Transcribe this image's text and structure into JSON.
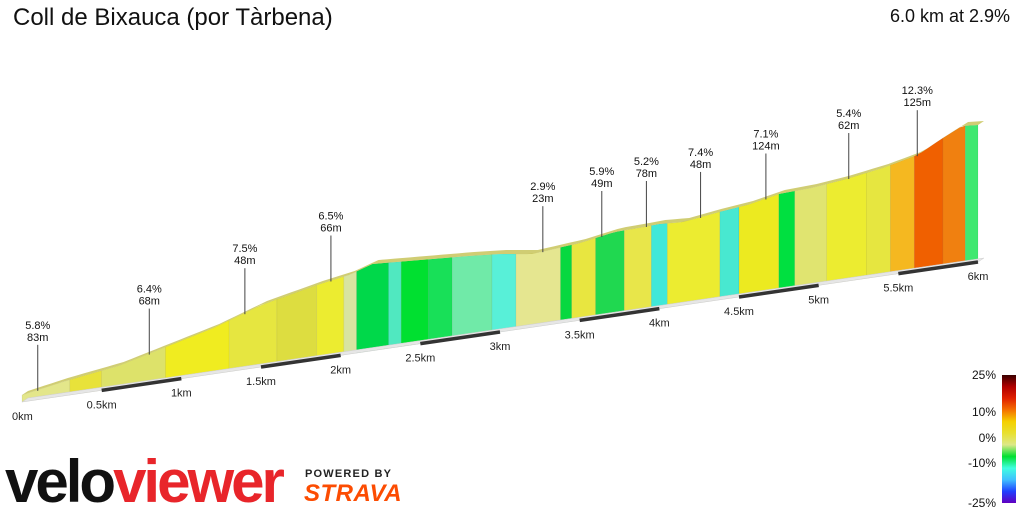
{
  "title": "Coll de Bixauca (por Tàrbena)",
  "summary": "6.0 km at 2.9%",
  "brand": {
    "part1": "velo",
    "part2": "viewer",
    "powered_by": "POWERED BY",
    "partner": "STRAVA"
  },
  "chart_data": {
    "type": "area",
    "title": "Coll de Bixauca (por Tàrbena)",
    "xlabel": "",
    "ylabel": "",
    "x_unit": "km",
    "xlim": [
      0,
      6
    ],
    "x_ticks": [
      "0km",
      "0.5km",
      "1km",
      "1.5km",
      "2km",
      "2.5km",
      "3km",
      "3.5km",
      "4km",
      "4.5km",
      "5km",
      "5.5km",
      "6km"
    ],
    "segments": [
      {
        "gradient": "5.8%",
        "length": "83m",
        "x": 0.08
      },
      {
        "gradient": "6.4%",
        "length": "68m",
        "x": 0.78
      },
      {
        "gradient": "7.5%",
        "length": "48m",
        "x": 1.38
      },
      {
        "gradient": "6.5%",
        "length": "66m",
        "x": 1.92
      },
      {
        "gradient": "2.9%",
        "length": "23m",
        "x": 3.25
      },
      {
        "gradient": "5.9%",
        "length": "49m",
        "x": 3.62
      },
      {
        "gradient": "5.2%",
        "length": "78m",
        "x": 3.9
      },
      {
        "gradient": "7.4%",
        "length": "48m",
        "x": 4.24
      },
      {
        "gradient": "7.1%",
        "length": "124m",
        "x": 4.65
      },
      {
        "gradient": "5.4%",
        "length": "62m",
        "x": 5.17
      },
      {
        "gradient": "12.3%",
        "length": "125m",
        "x": 5.6
      }
    ],
    "gradient_legend": {
      "labels": [
        "25%",
        "10%",
        "0%",
        "-10%",
        "-25%"
      ],
      "colors": [
        "#3a0000",
        "#b00000",
        "#e02000",
        "#f57000",
        "#f5d000",
        "#e8e030",
        "#dde888",
        "#00e030",
        "#40ffe0",
        "#40c0ff",
        "#2040ff",
        "#6000c0"
      ]
    }
  }
}
